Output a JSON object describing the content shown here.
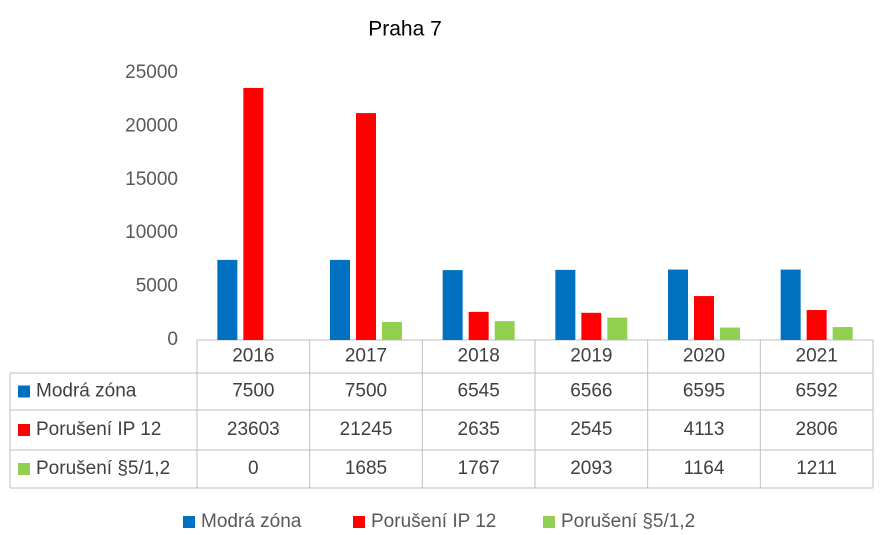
{
  "chart_data": {
    "type": "bar",
    "title": "Praha 7",
    "categories": [
      "2016",
      "2017",
      "2018",
      "2019",
      "2020",
      "2021"
    ],
    "series": [
      {
        "name": "Modrá zóna",
        "color": "#0070c0",
        "values": [
          7500,
          7500,
          6545,
          6566,
          6595,
          6592
        ]
      },
      {
        "name": "Porušení IP 12",
        "color": "#ff0000",
        "values": [
          23603,
          21245,
          2635,
          2545,
          4113,
          2806
        ]
      },
      {
        "name": "Porušení §5/1,2",
        "color": "#92d050",
        "values": [
          0,
          1685,
          1767,
          2093,
          1164,
          1211
        ]
      }
    ],
    "ylim": [
      0,
      25000
    ],
    "yticks": [
      0,
      5000,
      10000,
      15000,
      20000,
      25000
    ]
  }
}
